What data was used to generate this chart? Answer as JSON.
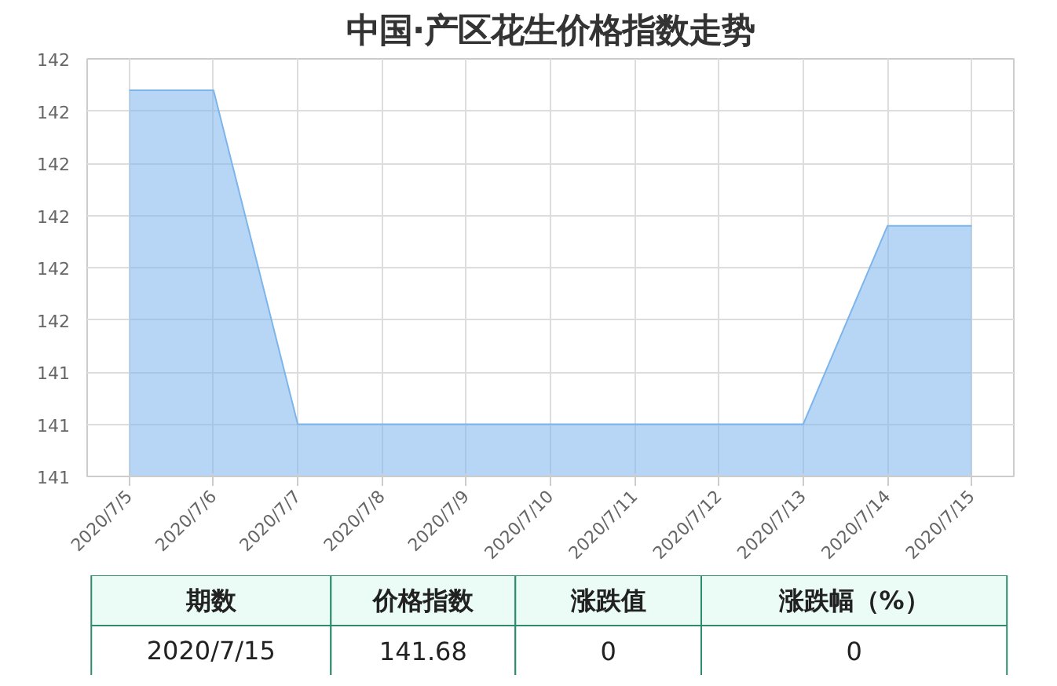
{
  "chart_data": {
    "type": "area",
    "title": "中国·产区花生价格指数走势",
    "categories": [
      "2020/7/5",
      "2020/7/6",
      "2020/7/7",
      "2020/7/8",
      "2020/7/9",
      "2020/7/10",
      "2020/7/11",
      "2020/7/12",
      "2020/7/13",
      "2020/7/14",
      "2020/7/15"
    ],
    "series": [
      {
        "color": "#7cb5ec",
        "values": [
          141.94,
          141.94,
          141.3,
          141.3,
          141.3,
          141.3,
          141.3,
          141.3,
          141.3,
          141.68,
          141.68
        ]
      }
    ],
    "ylim": [
      141.2,
      142.0
    ],
    "yticks": [
      {
        "value": 141.2,
        "label": "141"
      },
      {
        "value": 141.3,
        "label": "141"
      },
      {
        "value": 141.4,
        "label": "141"
      },
      {
        "value": 141.5,
        "label": "142"
      },
      {
        "value": 141.6,
        "label": "142"
      },
      {
        "value": 141.7,
        "label": "142"
      },
      {
        "value": 141.8,
        "label": "142"
      },
      {
        "value": 141.9,
        "label": "142"
      },
      {
        "value": 142.0,
        "label": "142"
      }
    ],
    "grid": true,
    "annotations": [
      "期数",
      "价格指数",
      "涨跌值",
      "涨跌幅（%）",
      "2020/7/15",
      "141.68",
      "0",
      "0"
    ]
  }
}
